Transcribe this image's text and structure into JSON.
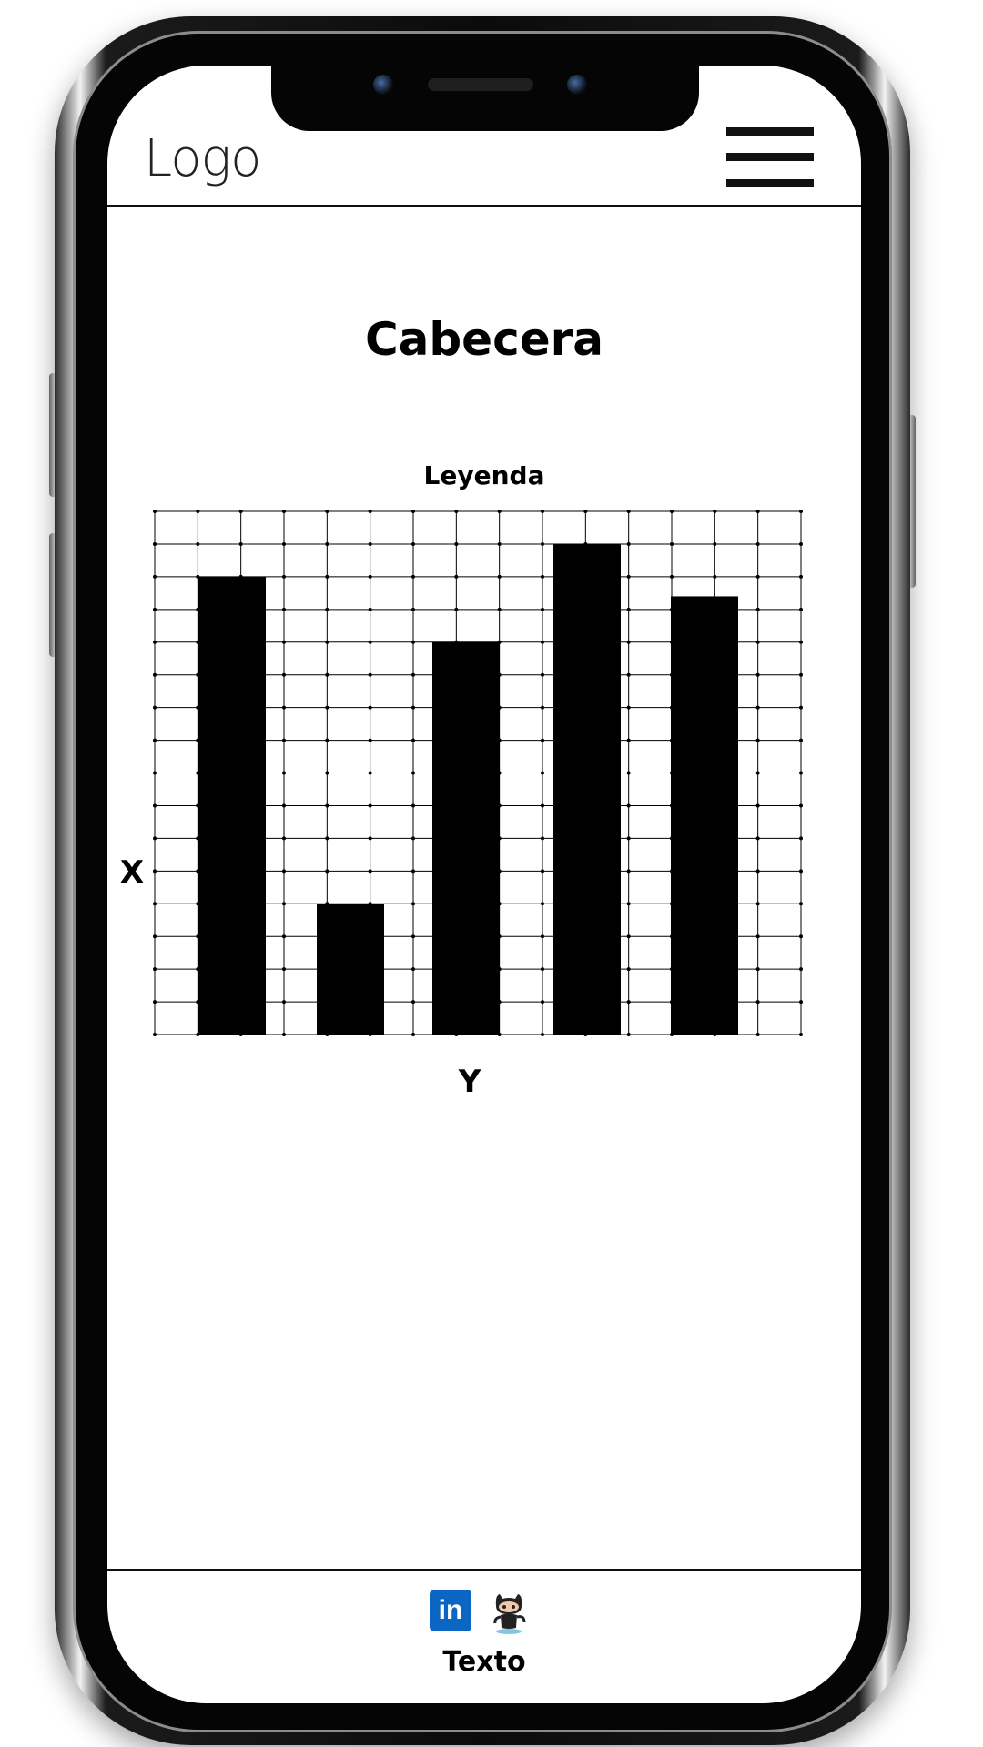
{
  "header": {
    "logo_text": "Logo"
  },
  "main": {
    "title": "Cabecera"
  },
  "chart_data": {
    "type": "bar",
    "title": "Leyenda",
    "categories": [
      "",
      "",
      "",
      "",
      ""
    ],
    "values": [
      14,
      4,
      12,
      15,
      13.4
    ],
    "xlabel": "Y",
    "ylabel": "X",
    "ylim": [
      0,
      16
    ],
    "grid": true,
    "bar_color": "#000000"
  },
  "footer": {
    "text": "Texto",
    "icons": [
      "linkedin-icon",
      "github-icon"
    ],
    "linkedin_label": "in",
    "linkedin_color": "#0a66c2"
  }
}
